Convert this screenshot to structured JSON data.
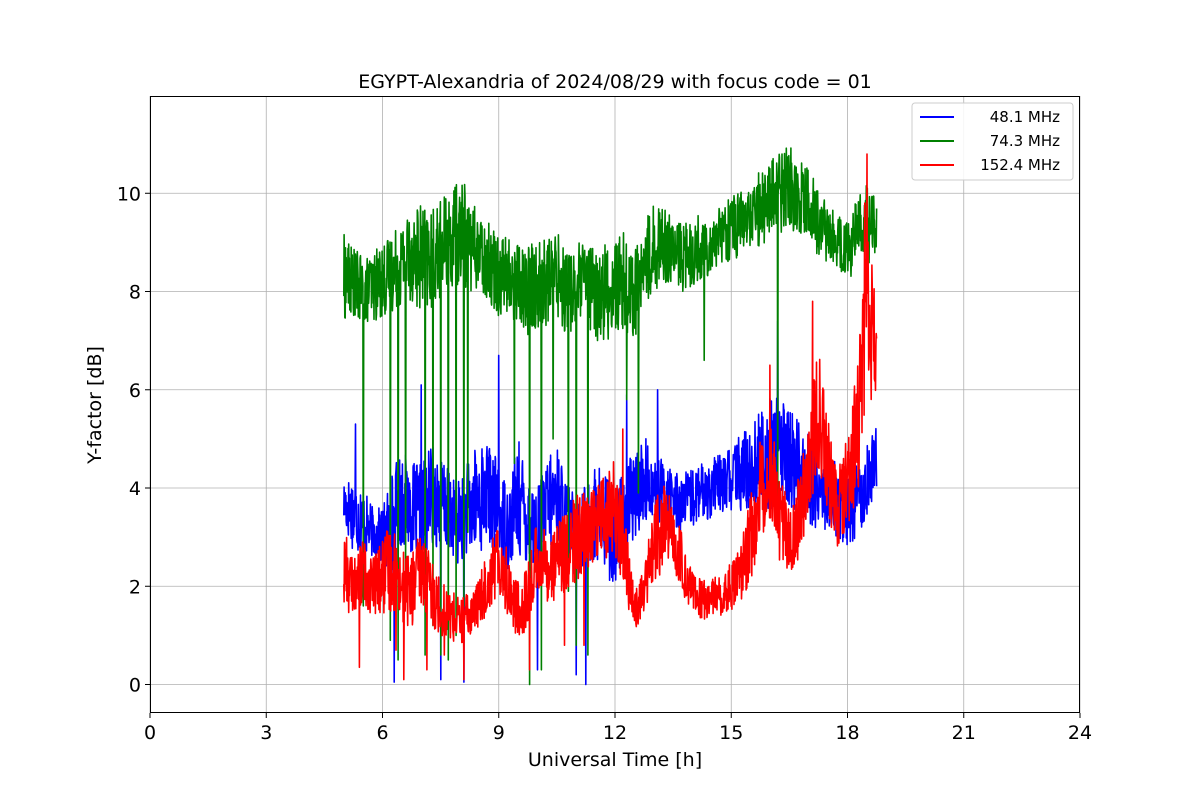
{
  "chart_data": {
    "type": "line",
    "title": "EGYPT-Alexandria of 2024/08/29 with focus code = 01",
    "xlabel": "Universal Time [h]",
    "ylabel": "Y-factor [dB]",
    "xlim": [
      0,
      24
    ],
    "ylim": [
      -0.58,
      11.98
    ],
    "xticks": [
      0,
      3,
      6,
      9,
      12,
      15,
      18,
      21,
      24
    ],
    "xtick_labels": [
      "0",
      "3",
      "6",
      "9",
      "12",
      "15",
      "18",
      "21",
      "24"
    ],
    "yticks": [
      0,
      2,
      4,
      6,
      8,
      10
    ],
    "ytick_labels": [
      "0",
      "2",
      "4",
      "6",
      "8",
      "10"
    ],
    "grid": true,
    "legend_position": "top-right",
    "series": [
      {
        "name": "48.1 MHz",
        "color": "#0000ff",
        "x": [
          5.0,
          5.25,
          5.5,
          5.75,
          6.0,
          6.25,
          6.5,
          6.75,
          7.0,
          7.25,
          7.5,
          7.75,
          8.0,
          8.25,
          8.5,
          8.75,
          9.0,
          9.25,
          9.5,
          9.75,
          10.0,
          10.25,
          10.5,
          10.75,
          11.0,
          11.25,
          11.5,
          11.75,
          12.0,
          12.25,
          12.5,
          12.75,
          13.0,
          13.25,
          13.5,
          13.75,
          14.0,
          14.25,
          14.5,
          14.75,
          15.0,
          15.25,
          15.5,
          15.75,
          16.0,
          16.25,
          16.5,
          16.75,
          17.0,
          17.25,
          17.5,
          17.75,
          18.0,
          18.25,
          18.5,
          18.75
        ],
        "y": [
          3.7,
          3.5,
          3.3,
          3.1,
          3.0,
          3.2,
          3.8,
          3.6,
          3.4,
          3.9,
          3.7,
          3.5,
          3.3,
          3.6,
          3.8,
          3.9,
          3.5,
          3.2,
          3.8,
          3.4,
          3.1,
          3.6,
          3.9,
          3.3,
          3.0,
          3.2,
          3.5,
          3.3,
          3.0,
          3.4,
          3.8,
          4.2,
          4.0,
          3.9,
          3.8,
          3.7,
          3.8,
          3.9,
          4.0,
          4.1,
          4.2,
          4.3,
          4.4,
          4.6,
          4.7,
          4.8,
          4.6,
          4.4,
          4.2,
          4.0,
          3.9,
          3.7,
          3.6,
          3.8,
          4.2,
          4.5
        ],
        "amp": [
          0.5,
          0.8,
          0.7,
          0.5,
          0.6,
          1.2,
          1.0,
          0.9,
          1.1,
          1.0,
          1.0,
          0.8,
          0.9,
          1.0,
          1.2,
          1.0,
          1.0,
          0.9,
          1.2,
          1.0,
          0.9,
          1.0,
          1.0,
          0.9,
          0.8,
          0.9,
          1.0,
          1.1,
          1.0,
          1.1,
          0.9,
          0.9,
          0.6,
          0.7,
          0.6,
          0.6,
          0.6,
          0.6,
          0.6,
          0.6,
          0.7,
          0.8,
          0.9,
          1.0,
          1.2,
          1.1,
          1.0,
          1.0,
          0.9,
          0.9,
          0.8,
          0.8,
          0.8,
          0.8,
          0.8,
          0.8
        ],
        "spikes": [
          [
            6.3,
            0.05
          ],
          [
            7.5,
            0.1
          ],
          [
            8.1,
            0.05
          ],
          [
            11.0,
            0.2
          ],
          [
            11.25,
            0.0
          ],
          [
            10.0,
            0.3
          ],
          [
            12.3,
            5.9
          ],
          [
            13.1,
            6.0
          ],
          [
            9.0,
            6.7
          ],
          [
            16.2,
            7.4
          ],
          [
            5.3,
            5.3
          ],
          [
            7.0,
            6.1
          ]
        ]
      },
      {
        "name": "74.3 MHz",
        "color": "#008000",
        "x": [
          5.0,
          5.25,
          5.5,
          5.75,
          6.0,
          6.25,
          6.5,
          6.75,
          7.0,
          7.25,
          7.5,
          7.75,
          8.0,
          8.25,
          8.5,
          8.75,
          9.0,
          9.25,
          9.5,
          9.75,
          10.0,
          10.25,
          10.5,
          10.75,
          11.0,
          11.25,
          11.5,
          11.75,
          12.0,
          12.25,
          12.5,
          12.75,
          13.0,
          13.25,
          13.5,
          13.75,
          14.0,
          14.25,
          14.5,
          14.75,
          15.0,
          15.25,
          15.5,
          15.75,
          16.0,
          16.25,
          16.5,
          16.75,
          17.0,
          17.25,
          17.5,
          17.75,
          18.0,
          18.25,
          18.5,
          18.75
        ],
        "y": [
          8.3,
          8.2,
          8.0,
          8.1,
          8.2,
          8.4,
          8.6,
          8.8,
          8.7,
          8.6,
          8.9,
          9.0,
          9.2,
          9.0,
          8.8,
          8.6,
          8.4,
          8.3,
          8.2,
          8.0,
          8.1,
          8.2,
          8.4,
          8.0,
          8.1,
          8.2,
          7.9,
          8.0,
          8.1,
          8.2,
          7.9,
          8.5,
          8.9,
          9.0,
          8.8,
          8.7,
          8.8,
          8.9,
          9.0,
          9.2,
          9.3,
          9.4,
          9.5,
          9.7,
          9.9,
          10.0,
          10.1,
          10.0,
          9.8,
          9.4,
          9.2,
          9.0,
          8.8,
          9.2,
          9.4,
          9.3
        ],
        "amp": [
          0.9,
          0.7,
          0.7,
          0.7,
          0.8,
          0.8,
          0.9,
          1.0,
          1.1,
          1.0,
          1.0,
          1.0,
          1.2,
          1.0,
          0.7,
          0.8,
          0.9,
          0.8,
          0.9,
          1.0,
          1.0,
          0.9,
          0.9,
          0.9,
          0.9,
          0.9,
          0.9,
          1.0,
          1.1,
          1.0,
          0.9,
          0.9,
          0.9,
          0.8,
          0.7,
          0.7,
          0.7,
          0.7,
          0.6,
          0.6,
          0.7,
          0.7,
          0.7,
          0.8,
          0.8,
          0.8,
          0.9,
          0.8,
          0.7,
          0.7,
          0.6,
          0.6,
          0.6,
          0.7,
          0.9,
          0.6
        ],
        "spikes": [
          [
            5.5,
            1.6
          ],
          [
            6.2,
            0.9
          ],
          [
            6.4,
            0.5
          ],
          [
            6.6,
            2.3
          ],
          [
            7.1,
            0.6
          ],
          [
            7.3,
            1.2
          ],
          [
            7.5,
            0.6
          ],
          [
            7.7,
            0.5
          ],
          [
            7.9,
            1.0
          ],
          [
            8.1,
            1.6
          ],
          [
            8.2,
            3.1
          ],
          [
            9.8,
            0.0
          ],
          [
            10.1,
            0.3
          ],
          [
            10.8,
            1.9
          ],
          [
            11.0,
            0.8
          ],
          [
            11.3,
            0.6
          ],
          [
            12.3,
            5.8
          ],
          [
            12.6,
            3.9
          ],
          [
            14.3,
            6.6
          ],
          [
            16.2,
            3.5
          ],
          [
            9.4,
            4.5
          ],
          [
            10.4,
            5.0
          ]
        ]
      },
      {
        "name": "152.4 MHz",
        "color": "#ff0000",
        "x": [
          5.0,
          5.25,
          5.5,
          5.75,
          6.0,
          6.25,
          6.5,
          6.75,
          7.0,
          7.25,
          7.5,
          7.75,
          8.0,
          8.25,
          8.5,
          8.75,
          9.0,
          9.25,
          9.5,
          9.75,
          10.0,
          10.25,
          10.5,
          10.75,
          11.0,
          11.25,
          11.5,
          11.75,
          12.0,
          12.25,
          12.5,
          12.75,
          13.0,
          13.25,
          13.5,
          13.75,
          14.0,
          14.25,
          14.5,
          14.75,
          15.0,
          15.25,
          15.5,
          15.75,
          16.0,
          16.25,
          16.5,
          16.75,
          17.0,
          17.25,
          17.5,
          17.75,
          18.0,
          18.25,
          18.5,
          18.75
        ],
        "y": [
          2.4,
          2.0,
          2.3,
          2.0,
          2.2,
          2.4,
          2.0,
          1.9,
          2.4,
          1.9,
          1.6,
          1.4,
          1.3,
          1.4,
          1.7,
          2.2,
          2.6,
          2.0,
          1.5,
          1.8,
          2.6,
          2.4,
          2.5,
          2.7,
          3.0,
          3.1,
          3.3,
          3.4,
          3.6,
          2.6,
          1.5,
          1.9,
          2.8,
          3.2,
          3.0,
          2.4,
          1.9,
          1.7,
          1.8,
          1.8,
          2.0,
          2.2,
          3.0,
          4.0,
          4.6,
          3.4,
          3.0,
          3.4,
          4.6,
          5.6,
          4.4,
          3.5,
          4.2,
          5.2,
          7.8,
          6.5
        ],
        "amp": [
          1.0,
          0.5,
          0.7,
          0.6,
          0.8,
          0.9,
          0.7,
          0.8,
          0.8,
          0.7,
          0.6,
          0.5,
          0.5,
          0.5,
          0.5,
          0.7,
          0.7,
          0.8,
          0.6,
          0.7,
          0.8,
          0.7,
          0.8,
          0.8,
          0.9,
          0.8,
          0.8,
          0.9,
          1.0,
          0.8,
          0.4,
          0.5,
          0.9,
          0.9,
          0.7,
          0.6,
          0.4,
          0.4,
          0.4,
          0.4,
          0.5,
          0.6,
          0.9,
          1.1,
          1.2,
          0.9,
          0.7,
          0.9,
          1.2,
          1.2,
          1.0,
          0.8,
          1.0,
          1.6,
          2.0,
          1.0
        ],
        "spikes": [
          [
            5.4,
            0.35
          ],
          [
            6.35,
            0.7
          ],
          [
            6.55,
            0.1
          ],
          [
            7.15,
            0.3
          ],
          [
            7.6,
            0.6
          ],
          [
            8.1,
            0.1
          ],
          [
            9.8,
            0.3
          ],
          [
            10.7,
            0.8
          ],
          [
            11.2,
            0.8
          ],
          [
            18.5,
            10.8
          ],
          [
            18.45,
            9.8
          ],
          [
            17.1,
            7.8
          ],
          [
            16.0,
            6.5
          ],
          [
            12.2,
            5.2
          ]
        ]
      }
    ]
  }
}
